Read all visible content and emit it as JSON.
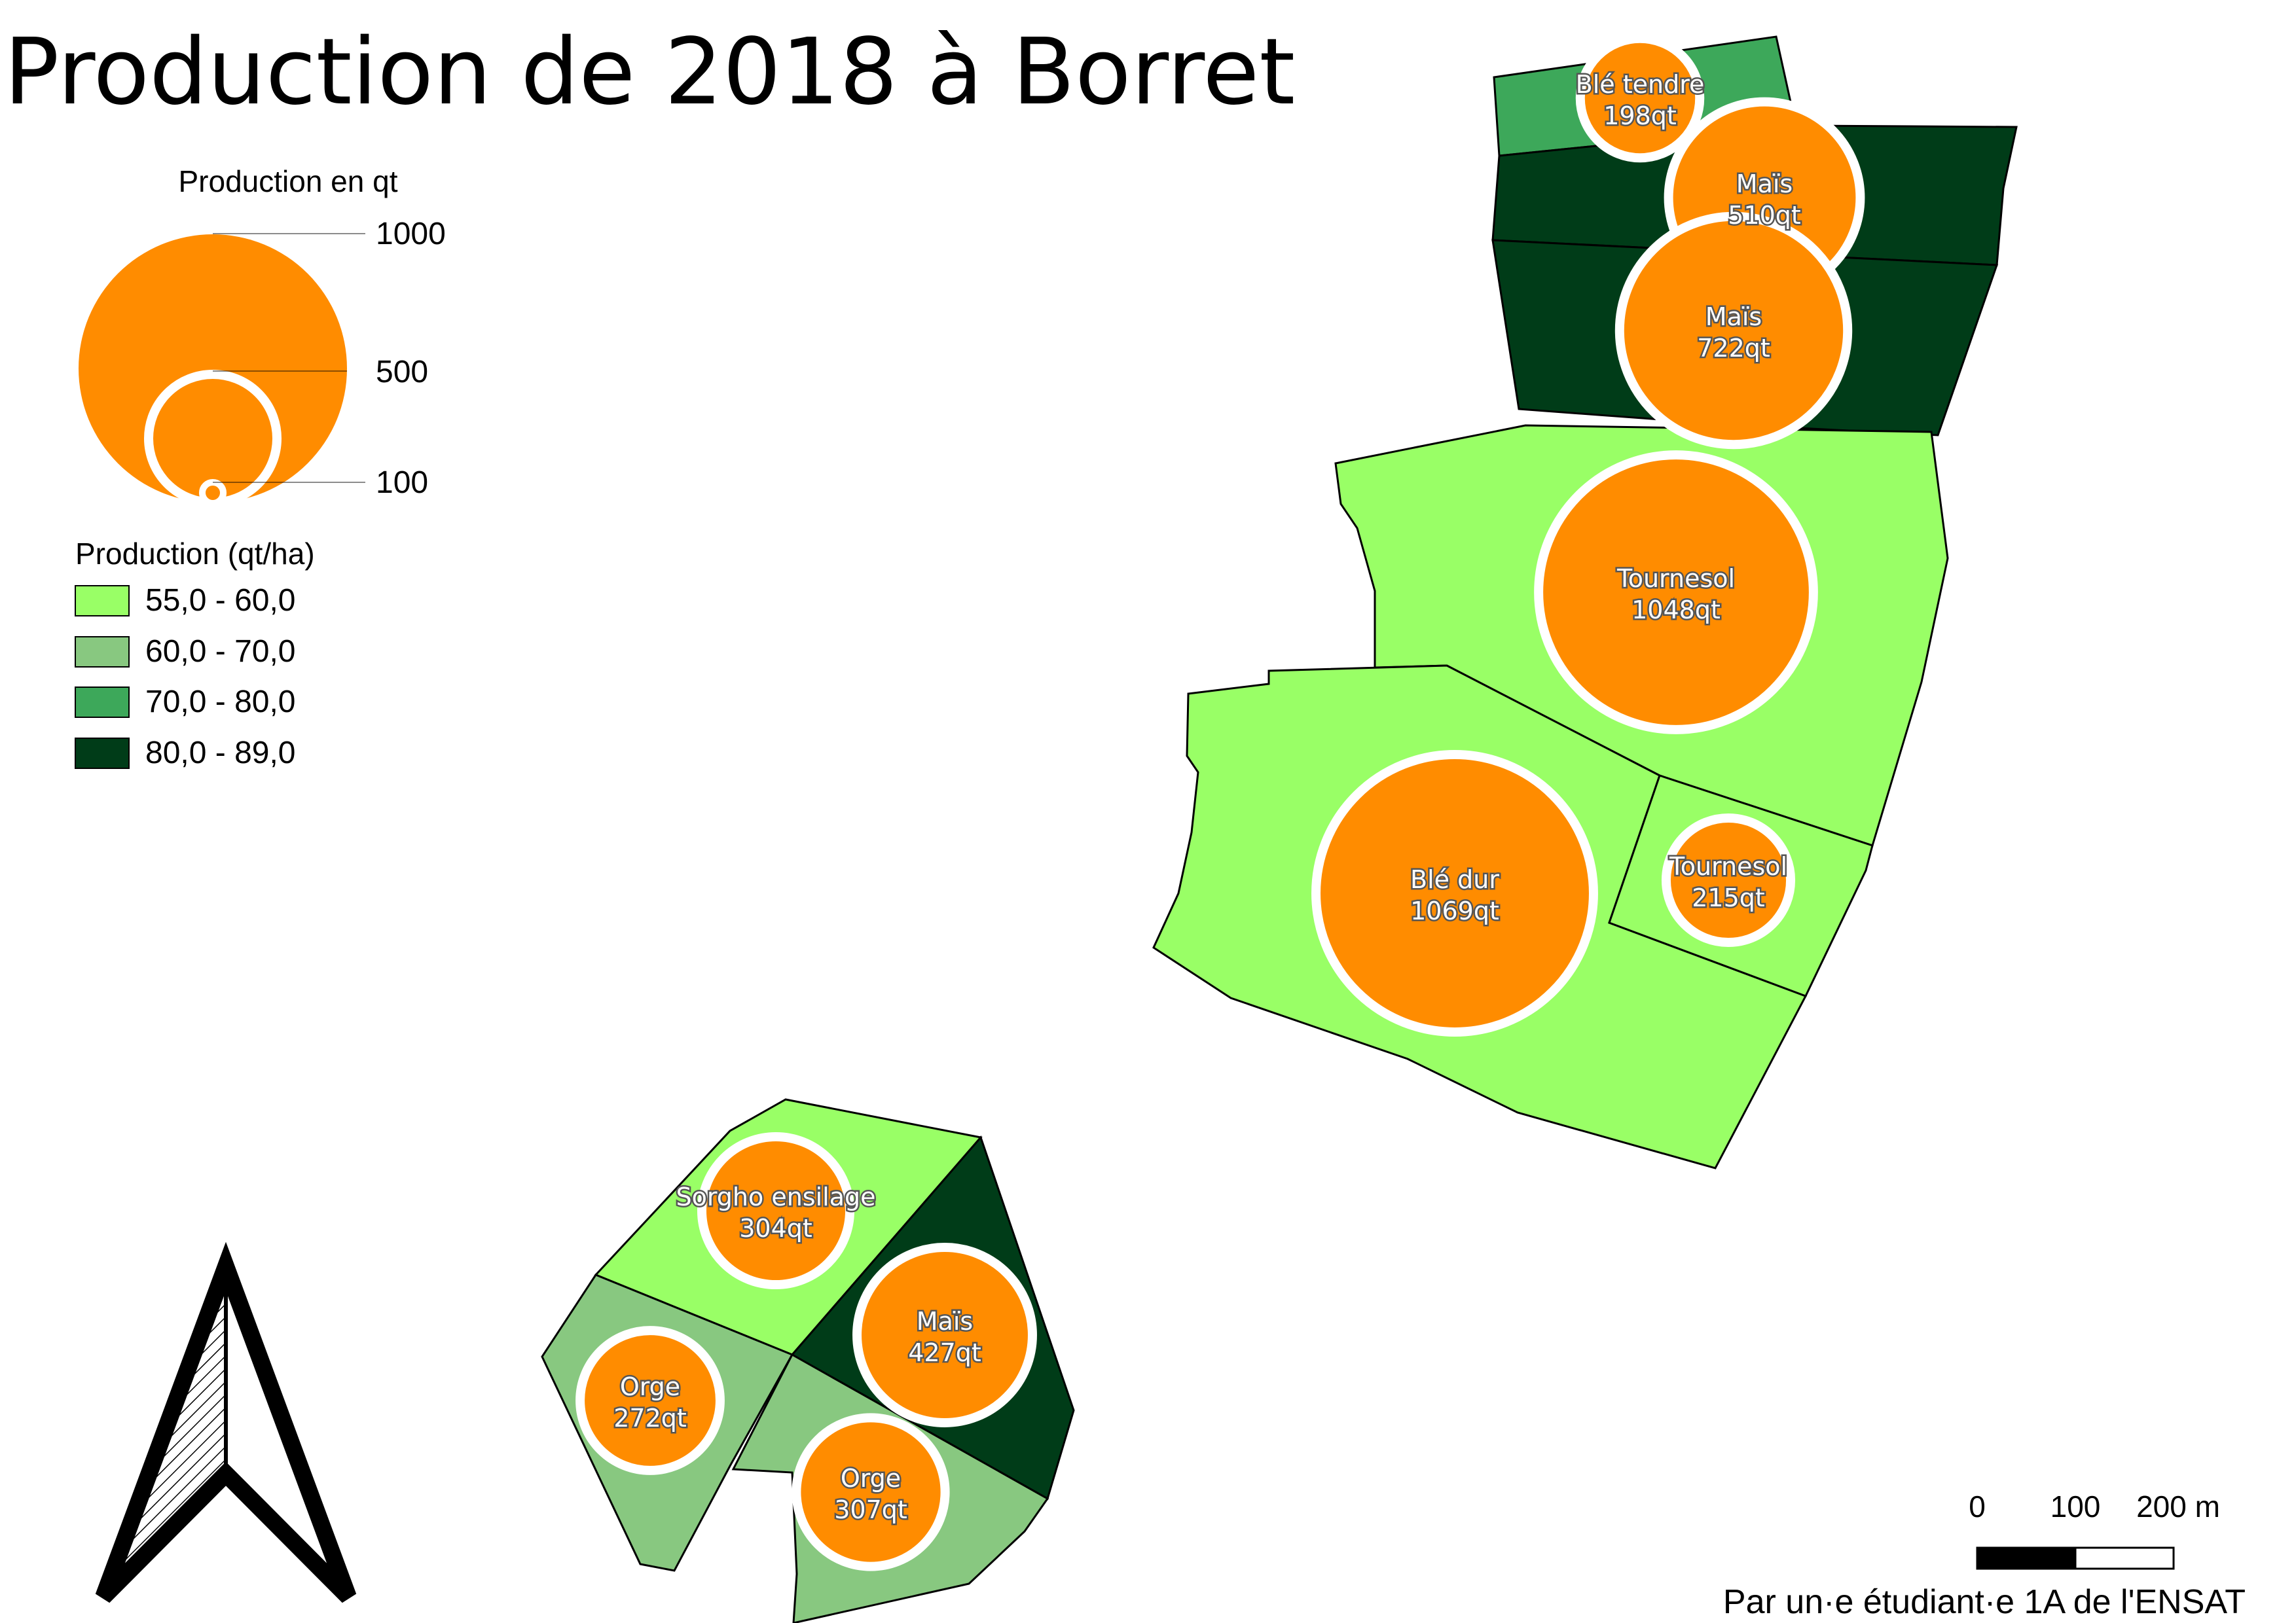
{
  "title": "Production de 2018 à Borret",
  "size_legend": {
    "title": "Production en qt",
    "values": [
      1000,
      500,
      100
    ],
    "labels": [
      "1000",
      "500",
      "100"
    ]
  },
  "color_legend": {
    "title": "Production (qt/ha)",
    "classes": [
      {
        "label": "55,0 - 60,0",
        "color": "#99ff66"
      },
      {
        "label": "60,0 - 70,0",
        "color": "#88c880"
      },
      {
        "label": "70,0 - 80,0",
        "color": "#3da85a"
      },
      {
        "label": "80,0 - 89,0",
        "color": "#003c18"
      }
    ]
  },
  "plots": [
    {
      "crop": "Blé tendre",
      "production_label": "198qt",
      "production": 198,
      "class": 2
    },
    {
      "crop": "Maïs",
      "production_label": "510qt",
      "production": 510,
      "class": 3
    },
    {
      "crop": "Maïs",
      "production_label": "722qt",
      "production": 722,
      "class": 3
    },
    {
      "crop": "Tournesol",
      "production_label": "1048qt",
      "production": 1048,
      "class": 0
    },
    {
      "crop": "Blé dur",
      "production_label": "1069qt",
      "production": 1069,
      "class": 0
    },
    {
      "crop": "Tournesol",
      "production_label": "215qt",
      "production": 215,
      "class": 0
    },
    {
      "crop": "Sorgho ensilage",
      "production_label": "304qt",
      "production": 304,
      "class": 0
    },
    {
      "crop": "Maïs",
      "production_label": "427qt",
      "production": 427,
      "class": 3
    },
    {
      "crop": "Orge",
      "production_label": "272qt",
      "production": 272,
      "class": 1
    },
    {
      "crop": "Orge",
      "production_label": "307qt",
      "production": 307,
      "class": 1
    }
  ],
  "scale_bar": {
    "labels": [
      "0",
      "100",
      "200 m"
    ]
  },
  "credit": "Par un·e étudiant·e 1A de l'ENSAT",
  "north_arrow": {
    "icon": "north-arrow-icon"
  }
}
